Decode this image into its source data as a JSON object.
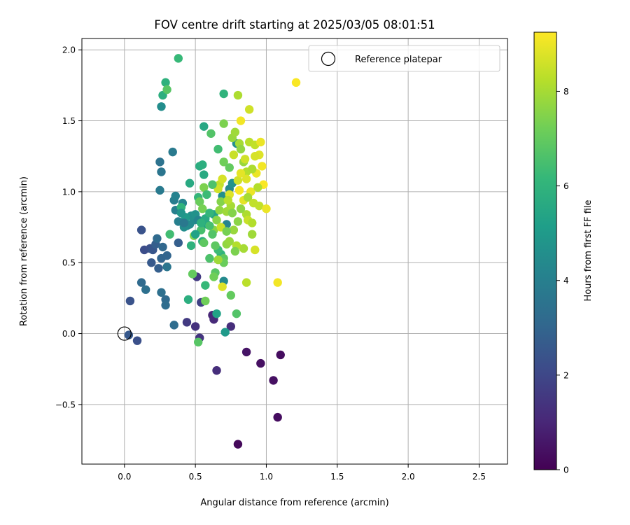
{
  "chart_data": {
    "type": "scatter",
    "title": "FOV centre drift starting at 2025/03/05 08:01:51",
    "xlabel": "Angular distance from reference (arcmin)",
    "ylabel": "Rotation from reference (arcmin)",
    "xlim": [
      -0.3,
      2.7
    ],
    "ylim": [
      -0.92,
      2.08
    ],
    "xticks": [
      0.0,
      0.5,
      1.0,
      1.5,
      2.0,
      2.5
    ],
    "xtick_labels": [
      "0.0",
      "0.5",
      "1.0",
      "1.5",
      "2.0",
      "2.5"
    ],
    "yticks": [
      -0.5,
      0.0,
      0.5,
      1.0,
      1.5,
      2.0
    ],
    "ytick_labels": [
      "−0.5",
      "0.0",
      "0.5",
      "1.0",
      "1.5",
      "2.0"
    ],
    "grid": true,
    "legend": {
      "placement": "top-right",
      "entries": [
        {
          "label": "Reference platepar",
          "marker": "open-circle",
          "x": 0.0,
          "y": 0.0
        }
      ]
    },
    "colorbar": {
      "label": "Hours from first FF file",
      "colormap": "viridis",
      "range": [
        0,
        9.25
      ],
      "ticks": [
        0,
        2,
        4,
        6,
        8
      ],
      "tick_labels": [
        "0",
        "2",
        "4",
        "6",
        "8"
      ]
    },
    "colormap_stops": [
      "#440154",
      "#482878",
      "#3e4989",
      "#31688e",
      "#26828e",
      "#1f9e89",
      "#35b779",
      "#6ece58",
      "#b5de2b",
      "#fde725"
    ],
    "points": [
      [
        0.8,
        -0.78,
        0.2
      ],
      [
        1.08,
        -0.59,
        0.3
      ],
      [
        1.05,
        -0.33,
        0.4
      ],
      [
        0.96,
        -0.21,
        0.4
      ],
      [
        1.1,
        -0.15,
        0.3
      ],
      [
        0.86,
        -0.13,
        0.5
      ],
      [
        0.65,
        -0.26,
        1.2
      ],
      [
        0.5,
        0.05,
        1.3
      ],
      [
        0.44,
        0.08,
        1.6
      ],
      [
        0.53,
        -0.03,
        1.4
      ],
      [
        0.62,
        0.13,
        1.0
      ],
      [
        0.63,
        0.1,
        1.1
      ],
      [
        0.75,
        0.05,
        1.2
      ],
      [
        0.51,
        0.4,
        1.6
      ],
      [
        0.54,
        0.22,
        1.8
      ],
      [
        0.09,
        -0.05,
        2.3
      ],
      [
        0.03,
        -0.01,
        2.6
      ],
      [
        0.04,
        0.23,
        2.4
      ],
      [
        0.14,
        0.59,
        2.2
      ],
      [
        0.18,
        0.6,
        2.3
      ],
      [
        0.12,
        0.73,
        2.4
      ],
      [
        0.19,
        0.5,
        2.6
      ],
      [
        0.2,
        0.59,
        2.5
      ],
      [
        0.24,
        0.46,
        2.8
      ],
      [
        0.22,
        0.63,
        2.8
      ],
      [
        0.26,
        0.53,
        3.0
      ],
      [
        0.27,
        0.61,
        3.1
      ],
      [
        0.23,
        0.67,
        3.2
      ],
      [
        0.3,
        0.55,
        3.0
      ],
      [
        0.12,
        0.36,
        3.2
      ],
      [
        0.15,
        0.31,
        3.4
      ],
      [
        0.26,
        0.29,
        3.4
      ],
      [
        0.29,
        0.24,
        3.2
      ],
      [
        0.29,
        0.2,
        3.3
      ],
      [
        0.35,
        0.06,
        3.3
      ],
      [
        0.3,
        0.47,
        3.6
      ],
      [
        0.38,
        0.64,
        2.8
      ],
      [
        0.25,
        1.21,
        3.5
      ],
      [
        0.26,
        1.14,
        3.6
      ],
      [
        0.34,
        1.28,
        3.8
      ],
      [
        0.25,
        1.01,
        3.8
      ],
      [
        0.35,
        0.94,
        3.9
      ],
      [
        0.36,
        0.87,
        4.0
      ],
      [
        0.36,
        0.97,
        4.1
      ],
      [
        0.38,
        0.79,
        4.0
      ],
      [
        0.41,
        0.92,
        4.2
      ],
      [
        0.44,
        0.76,
        4.3
      ],
      [
        0.46,
        0.77,
        4.4
      ],
      [
        0.49,
        0.8,
        4.4
      ],
      [
        0.47,
        0.83,
        4.6
      ],
      [
        0.5,
        0.84,
        4.7
      ],
      [
        0.52,
        0.8,
        4.2
      ],
      [
        0.26,
        1.6,
        4.5
      ],
      [
        0.72,
        0.77,
        4.2
      ],
      [
        0.7,
        0.37,
        4.4
      ],
      [
        0.74,
        1.02,
        4.3
      ],
      [
        0.69,
        0.97,
        4.6
      ],
      [
        0.76,
        1.06,
        4.7
      ],
      [
        0.79,
        1.34,
        4.6
      ],
      [
        0.71,
        0.01,
        5.0
      ],
      [
        0.65,
        0.14,
        5.3
      ],
      [
        0.58,
        0.77,
        5.2
      ],
      [
        0.63,
        0.84,
        5.4
      ],
      [
        0.57,
        0.81,
        5.6
      ],
      [
        0.55,
        0.65,
        5.7
      ],
      [
        0.56,
        1.12,
        5.6
      ],
      [
        0.53,
        1.18,
        5.7
      ],
      [
        0.55,
        1.19,
        5.8
      ],
      [
        0.56,
        1.46,
        5.5
      ],
      [
        0.27,
        1.68,
        5.8
      ],
      [
        0.29,
        1.77,
        5.9
      ],
      [
        0.7,
        1.69,
        6.0
      ],
      [
        0.38,
        1.94,
        6.2
      ],
      [
        0.3,
        1.72,
        6.8
      ],
      [
        0.46,
        1.06,
        5.6
      ],
      [
        0.45,
        0.24,
        5.8
      ],
      [
        0.4,
        0.89,
        6.0
      ],
      [
        0.47,
        0.62,
        5.9
      ],
      [
        0.52,
        0.96,
        6.1
      ],
      [
        0.57,
        0.34,
        6.2
      ],
      [
        0.68,
        0.56,
        6.0
      ],
      [
        0.66,
        0.59,
        6.3
      ],
      [
        0.61,
        1.41,
        6.7
      ],
      [
        0.66,
        1.3,
        6.4
      ],
      [
        0.54,
        0.73,
        6.5
      ],
      [
        0.6,
        0.53,
        6.6
      ],
      [
        0.64,
        0.43,
        6.8
      ],
      [
        0.7,
        0.53,
        6.9
      ],
      [
        0.79,
        0.14,
        6.7
      ],
      [
        0.75,
        0.27,
        7.0
      ],
      [
        0.52,
        -0.06,
        6.8
      ],
      [
        0.57,
        0.23,
        7.2
      ],
      [
        0.56,
        0.64,
        6.9
      ],
      [
        0.53,
        0.93,
        7.1
      ],
      [
        0.55,
        0.88,
        7.3
      ],
      [
        0.56,
        1.03,
        7.4
      ],
      [
        0.48,
        0.42,
        7.0
      ],
      [
        0.49,
        0.69,
        7.5
      ],
      [
        0.63,
        0.73,
        7.6
      ],
      [
        0.65,
        0.8,
        7.6
      ],
      [
        0.67,
        0.87,
        7.7
      ],
      [
        0.68,
        0.93,
        7.5
      ],
      [
        0.7,
        1.21,
        7.2
      ],
      [
        0.72,
        0.63,
        7.7
      ],
      [
        0.74,
        0.65,
        7.8
      ],
      [
        0.77,
        0.73,
        7.8
      ],
      [
        0.72,
        0.86,
        7.9
      ],
      [
        0.75,
        0.9,
        8.0
      ],
      [
        0.76,
        1.38,
        7.8
      ],
      [
        0.78,
        1.42,
        7.9
      ],
      [
        0.81,
        1.34,
        8.0
      ],
      [
        0.82,
        1.3,
        7.7
      ],
      [
        0.84,
        1.21,
        7.8
      ],
      [
        0.8,
        1.68,
        8.1
      ],
      [
        0.86,
        1.14,
        8.2
      ],
      [
        0.88,
        1.35,
        8.3
      ],
      [
        0.88,
        1.58,
        8.6
      ],
      [
        0.92,
        1.33,
        8.4
      ],
      [
        0.86,
        0.84,
        8.1
      ],
      [
        0.9,
        0.7,
        7.9
      ],
      [
        0.84,
        0.6,
        8.0
      ],
      [
        0.79,
        0.62,
        8.2
      ],
      [
        0.86,
        0.36,
        8.3
      ],
      [
        0.67,
        1.05,
        8.4
      ],
      [
        0.68,
        0.75,
        8.5
      ],
      [
        0.69,
        0.33,
        8.8
      ],
      [
        0.66,
        1.02,
        8.6
      ],
      [
        0.69,
        1.09,
        8.7
      ],
      [
        0.74,
        0.98,
        8.8
      ],
      [
        0.8,
        1.08,
        8.6
      ],
      [
        0.82,
        1.13,
        8.9
      ],
      [
        0.86,
        1.09,
        8.8
      ],
      [
        0.87,
        0.8,
        8.5
      ],
      [
        0.9,
        0.78,
        8.2
      ],
      [
        0.92,
        0.59,
        8.7
      ],
      [
        0.95,
        0.9,
        8.4
      ],
      [
        0.96,
        1.35,
        9.0
      ],
      [
        0.97,
        1.18,
        9.1
      ],
      [
        0.98,
        1.05,
        9.2
      ],
      [
        1.0,
        0.88,
        9.0
      ],
      [
        1.08,
        0.36,
        9.1
      ],
      [
        1.21,
        1.77,
        9.2
      ],
      [
        0.93,
        1.13,
        9.0
      ],
      [
        0.95,
        1.26,
        8.8
      ],
      [
        0.82,
        1.5,
        9.1
      ],
      [
        0.81,
        1.01,
        9.2
      ],
      [
        0.89,
        1.0,
        9.0
      ],
      [
        0.84,
        0.94,
        8.9
      ],
      [
        0.77,
        1.26,
        8.5
      ],
      [
        0.73,
        0.94,
        8.3
      ],
      [
        0.9,
        1.16,
        8.1
      ],
      [
        0.94,
        1.03,
        8.2
      ],
      [
        0.92,
        1.25,
        8.7
      ],
      [
        0.85,
        1.23,
        8.6
      ],
      [
        0.8,
        0.79,
        7.6
      ],
      [
        0.78,
        0.58,
        7.4
      ],
      [
        0.72,
        0.72,
        7.3
      ],
      [
        0.7,
        0.5,
        7.1
      ],
      [
        0.64,
        0.62,
        6.9
      ],
      [
        0.62,
        0.7,
        6.7
      ],
      [
        0.6,
        0.76,
        6.5
      ],
      [
        0.58,
        0.98,
        6.3
      ],
      [
        0.62,
        1.05,
        6.6
      ],
      [
        0.74,
        1.17,
        7.0
      ],
      [
        0.76,
        0.85,
        7.5
      ],
      [
        0.82,
        0.88,
        7.7
      ],
      [
        0.87,
        0.96,
        8.0
      ],
      [
        0.91,
        0.92,
        8.4
      ],
      [
        0.7,
        1.48,
        7.4
      ],
      [
        0.66,
        0.52,
        7.9
      ],
      [
        0.63,
        0.4,
        7.2
      ],
      [
        0.6,
        0.85,
        6.1
      ],
      [
        0.54,
        0.78,
        5.9
      ],
      [
        0.5,
        0.7,
        5.3
      ],
      [
        0.43,
        0.82,
        5.0
      ],
      [
        0.4,
        0.85,
        4.8
      ],
      [
        0.42,
        0.75,
        4.5
      ],
      [
        0.32,
        0.7,
        6.4
      ],
      [
        0.42,
        0.78,
        3.7
      ]
    ]
  }
}
